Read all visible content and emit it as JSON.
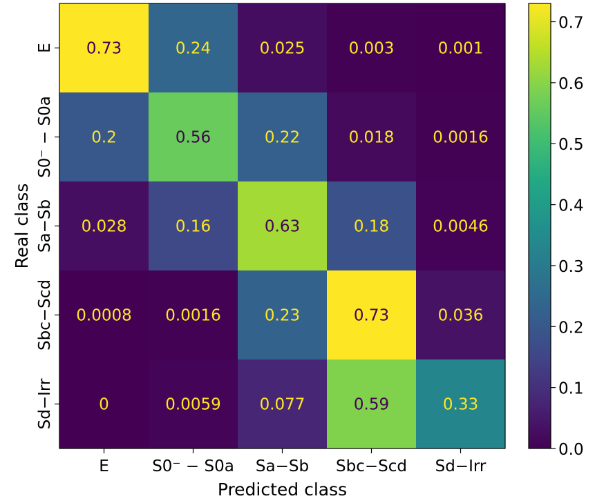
{
  "chart_data": {
    "type": "heatmap",
    "title": "",
    "xlabel": "Predicted class",
    "ylabel": "Real class",
    "x_categories": [
      "E",
      "S0⁻ − S0a",
      "Sa−Sb",
      "Sbc−Scd",
      "Sd−Irr"
    ],
    "y_categories": [
      "E",
      "S0⁻ − S0a",
      "Sa−Sb",
      "Sbc−Scd",
      "Sd−Irr"
    ],
    "values": [
      [
        0.73,
        0.24,
        0.025,
        0.003,
        0.001
      ],
      [
        0.2,
        0.56,
        0.22,
        0.018,
        0.0016
      ],
      [
        0.028,
        0.16,
        0.63,
        0.18,
        0.0046
      ],
      [
        0.0008,
        0.0016,
        0.23,
        0.73,
        0.036
      ],
      [
        0,
        0.0059,
        0.077,
        0.59,
        0.33
      ]
    ],
    "cell_labels": [
      [
        "0.73",
        "0.24",
        "0.025",
        "0.003",
        "0.001"
      ],
      [
        "0.2",
        "0.56",
        "0.22",
        "0.018",
        "0.0016"
      ],
      [
        "0.028",
        "0.16",
        "0.63",
        "0.18",
        "0.0046"
      ],
      [
        "0.0008",
        "0.0016",
        "0.23",
        "0.73",
        "0.036"
      ],
      [
        "0",
        "0.0059",
        "0.077",
        "0.59",
        "0.33"
      ]
    ],
    "colormap": "viridis",
    "colorbar": {
      "range": [
        0,
        0.73
      ],
      "ticks": [
        0.0,
        0.1,
        0.2,
        0.3,
        0.4,
        0.5,
        0.6,
        0.7
      ],
      "tick_labels": [
        "0.0",
        "0.1",
        "0.2",
        "0.3",
        "0.4",
        "0.5",
        "0.6",
        "0.7"
      ]
    },
    "text_colors": {
      "light": "#fde725",
      "dark": "#440154"
    }
  }
}
